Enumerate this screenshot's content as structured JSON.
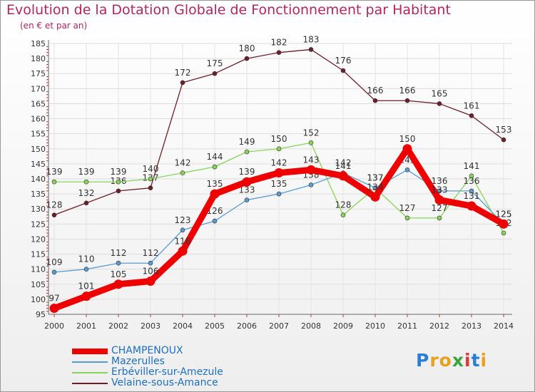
{
  "header": {
    "title": "Evolution de la Dotation Globale de Fonctionnement par Habitant",
    "subtitle": "(en € et par an)"
  },
  "logo": {
    "text": "Proxiti"
  },
  "chart_data": {
    "type": "line",
    "title": "Evolution de la Dotation Globale de Fonctionnement par Habitant",
    "subtitle": "(en € et par an)",
    "xlabel": "",
    "ylabel": "",
    "x": [
      "2000",
      "2001",
      "2002",
      "2003",
      "2004",
      "2005",
      "2006",
      "2007",
      "2008",
      "2009",
      "2010",
      "2011",
      "2012",
      "2013",
      "2014"
    ],
    "ylim": [
      95,
      185
    ],
    "yticks": [
      95,
      100,
      105,
      110,
      115,
      120,
      125,
      130,
      135,
      140,
      145,
      150,
      155,
      160,
      165,
      170,
      175,
      180,
      185
    ],
    "grid": true,
    "legend_position": "bottom-left",
    "series": [
      {
        "name": "CHAMPENOUX",
        "color": "#ee0000",
        "values": [
          97,
          101,
          105,
          106,
          116,
          135,
          139,
          142,
          143,
          141,
          134,
          150,
          133,
          131,
          125
        ],
        "labels": [
          "97",
          "101",
          "105",
          "106",
          "116",
          "135",
          "139",
          "142",
          "143",
          "141",
          "134",
          "150",
          "133",
          "131",
          "125"
        ]
      },
      {
        "name": "Mazerulles",
        "color": "#5a9bd0",
        "values": [
          109,
          110,
          112,
          112,
          123,
          126,
          133,
          135,
          138,
          142,
          137,
          143,
          136,
          136,
          125
        ],
        "labels": [
          "109",
          "110",
          "112",
          "112",
          "123",
          "126",
          "133",
          "135",
          "138",
          "142",
          "137",
          "143",
          "136",
          "136",
          "125"
        ]
      },
      {
        "name": "Erbéviller-sur-Amezule",
        "color": "#88d45a",
        "values": [
          139,
          139,
          139,
          140,
          142,
          144,
          149,
          150,
          152,
          128,
          137,
          127,
          127,
          141,
          122
        ],
        "labels": [
          "139",
          "139",
          "139",
          "140",
          "142",
          "144",
          "149",
          "150",
          "152",
          "128",
          "137",
          "127",
          "127",
          "141",
          "122"
        ]
      },
      {
        "name": "Velaine-sous-Amance",
        "color": "#6e1e28",
        "values": [
          128,
          132,
          136,
          137,
          172,
          175,
          180,
          182,
          183,
          176,
          166,
          166,
          165,
          161,
          153
        ],
        "labels": [
          "128",
          "132",
          "136",
          "137",
          "172",
          "175",
          "180",
          "182",
          "183",
          "176",
          "166",
          "166",
          "165",
          "161",
          "153"
        ]
      }
    ]
  }
}
